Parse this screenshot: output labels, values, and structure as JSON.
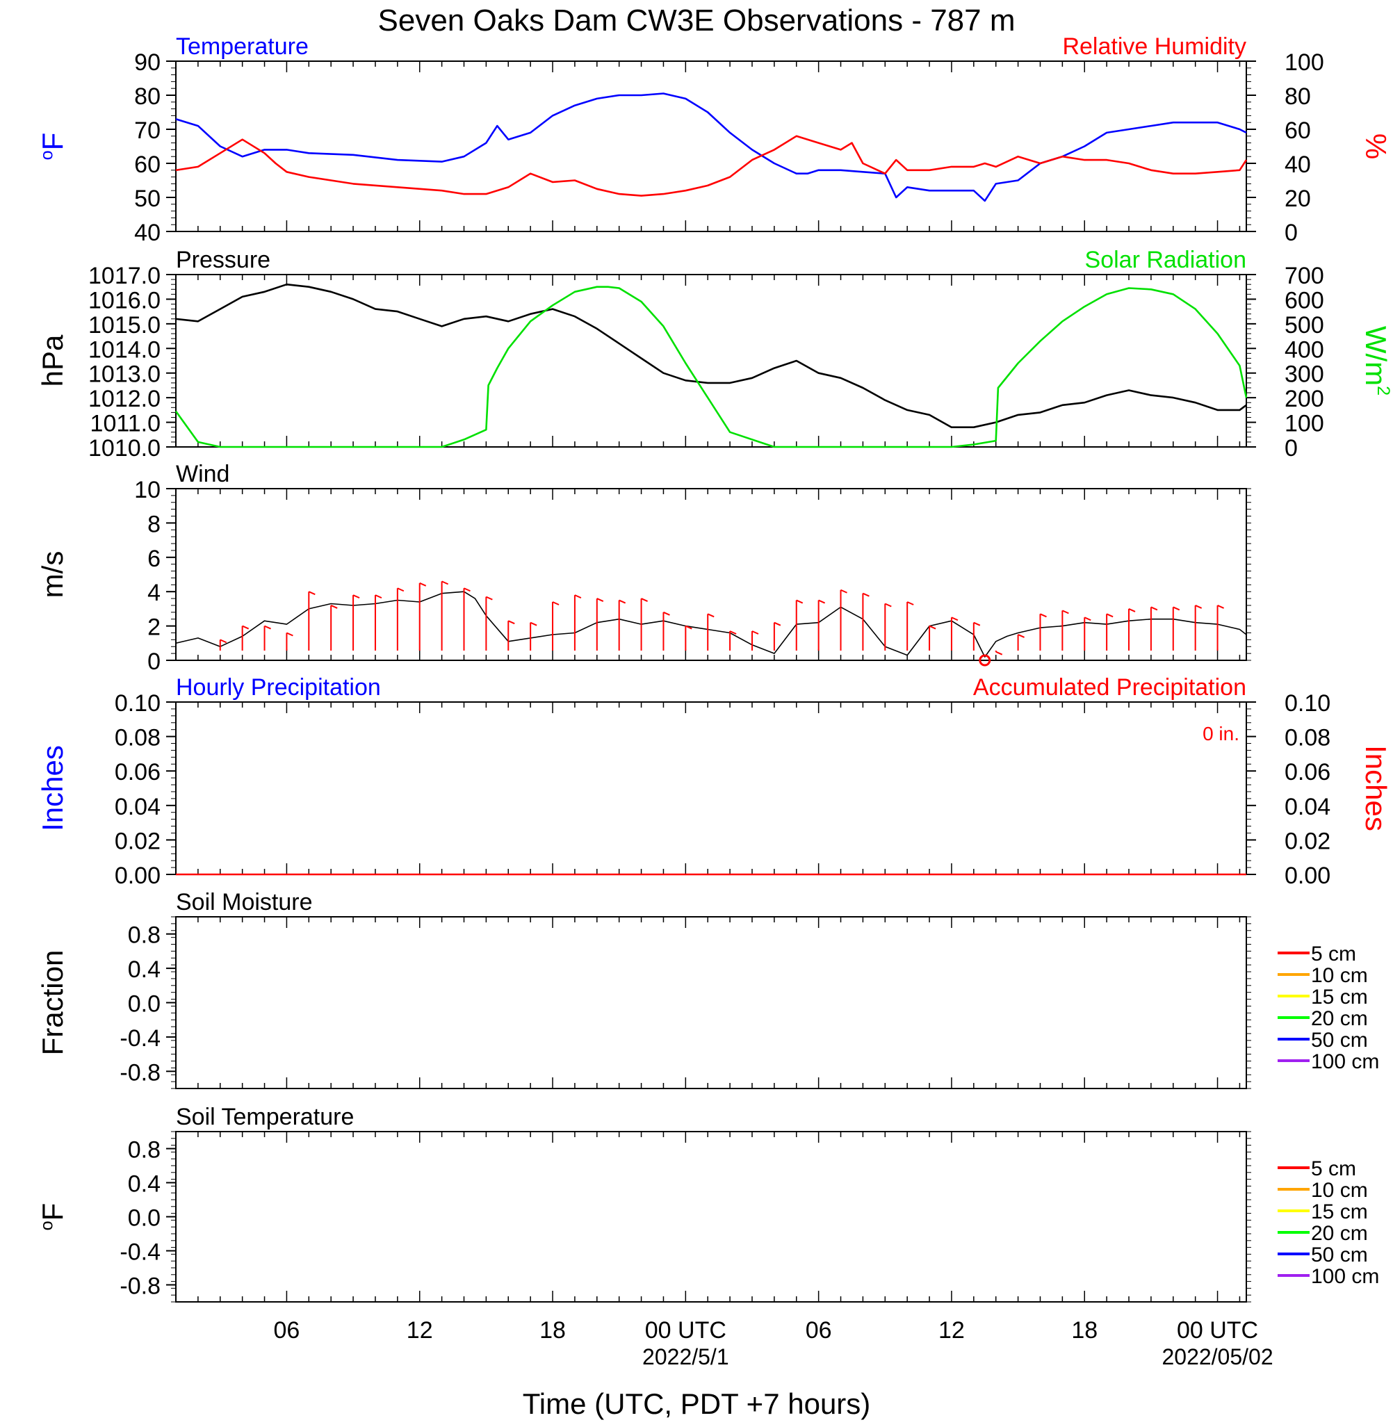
{
  "title": "Seven Oaks Dam CW3E Observations - 787 m",
  "x_axis": {
    "label": "Time (UTC, PDT +7 hours)",
    "ticks": [
      {
        "t": 6,
        "label": "06",
        "sub": ""
      },
      {
        "t": 12,
        "label": "12",
        "sub": ""
      },
      {
        "t": 18,
        "label": "18",
        "sub": ""
      },
      {
        "t": 24,
        "label": "00 UTC",
        "sub": "2022/5/1"
      },
      {
        "t": 30,
        "label": "06",
        "sub": ""
      },
      {
        "t": 36,
        "label": "12",
        "sub": ""
      },
      {
        "t": 42,
        "label": "18",
        "sub": ""
      },
      {
        "t": 48,
        "label": "00 UTC",
        "sub": "2022/05/02"
      }
    ],
    "range_hours": [
      1,
      49.3
    ]
  },
  "colors": {
    "blue": "#0000ff",
    "red": "#ff0000",
    "green": "#00e000",
    "black": "#000000"
  },
  "chart_data": [
    {
      "type": "line",
      "panel": "temperature_rh",
      "left_title": "Temperature",
      "right_title": "Relative Humidity",
      "left_ylabel": "oF",
      "right_ylabel": "%",
      "left_ylim": [
        40,
        90
      ],
      "left_ticks": [
        "90",
        "80",
        "70",
        "60",
        "50",
        "40"
      ],
      "right_ylim": [
        0,
        100
      ],
      "right_ticks": [
        "100",
        "80",
        "60",
        "40",
        "20",
        "0"
      ],
      "series": [
        {
          "name": "Temperature",
          "axis": "left",
          "color": "#0000ff",
          "x": [
            1,
            2,
            3,
            4,
            5,
            6,
            7,
            9,
            11,
            13,
            14,
            15,
            15.5,
            16,
            17,
            18,
            19,
            20,
            21,
            22,
            23,
            24,
            25,
            26,
            27,
            28,
            29,
            29.5,
            30,
            31,
            32,
            33,
            33.5,
            34,
            35,
            36,
            37,
            37.5,
            38,
            39,
            40,
            41,
            42,
            43,
            44,
            45,
            46,
            47,
            48,
            49,
            49.3
          ],
          "y": [
            73,
            71,
            65,
            62,
            64,
            64,
            63,
            62.5,
            61,
            60.5,
            62,
            66,
            71,
            67,
            69,
            74,
            77,
            79,
            80,
            80,
            80.5,
            79,
            75,
            69,
            64,
            60,
            57,
            57,
            58,
            58,
            57.5,
            57,
            50,
            53,
            52,
            52,
            52,
            49,
            54,
            55,
            60,
            62,
            65,
            69,
            70,
            71,
            72,
            72,
            72,
            70,
            69
          ]
        },
        {
          "name": "Relative Humidity",
          "axis": "right",
          "color": "#ff0000",
          "x": [
            1,
            2,
            3,
            4,
            5,
            5.5,
            6,
            7,
            9,
            11,
            13,
            14,
            15,
            16,
            17,
            18,
            19,
            20,
            21,
            22,
            23,
            24,
            25,
            26,
            27,
            28,
            29,
            30,
            31,
            31.5,
            32,
            33,
            33.5,
            34,
            35,
            36,
            37,
            37.5,
            38,
            39,
            40,
            41,
            42,
            43,
            44,
            45,
            46,
            47,
            48,
            49,
            49.3
          ],
          "y": [
            36,
            38,
            46,
            54,
            46,
            40,
            35,
            32,
            28,
            26,
            24,
            22,
            22,
            26,
            34,
            29,
            30,
            25,
            22,
            21,
            22,
            24,
            27,
            32,
            42,
            48,
            56,
            52,
            48,
            52,
            40,
            34,
            42,
            36,
            36,
            38,
            38,
            40,
            38,
            44,
            40,
            44,
            42,
            42,
            40,
            36,
            34,
            34,
            35,
            36,
            42
          ]
        }
      ]
    },
    {
      "type": "line",
      "panel": "pressure_solar",
      "left_title": "Pressure",
      "right_title": "Solar Radiation",
      "left_ylabel": "hPa",
      "right_ylabel": "W/m2",
      "left_ylim": [
        1010,
        1017
      ],
      "left_ticks": [
        "1017.0",
        "1016.0",
        "1015.0",
        "1014.0",
        "1013.0",
        "1012.0",
        "1011.0",
        "1010.0"
      ],
      "right_ylim": [
        0,
        700
      ],
      "right_ticks": [
        "700",
        "600",
        "500",
        "400",
        "300",
        "200",
        "100",
        "0"
      ],
      "series": [
        {
          "name": "Pressure",
          "axis": "left",
          "color": "#000000",
          "x": [
            1,
            2,
            3,
            4,
            5,
            6,
            7,
            8,
            9,
            10,
            11,
            12,
            13,
            14,
            15,
            16,
            17,
            18,
            19,
            20,
            21,
            22,
            23,
            24,
            25,
            26,
            27,
            28,
            29,
            30,
            31,
            32,
            33,
            34,
            35,
            36,
            37,
            38,
            39,
            40,
            41,
            42,
            43,
            44,
            45,
            46,
            47,
            48,
            49,
            49.3
          ],
          "y": [
            1015.2,
            1015.1,
            1015.6,
            1016.1,
            1016.3,
            1016.6,
            1016.5,
            1016.3,
            1016.0,
            1015.6,
            1015.5,
            1015.2,
            1014.9,
            1015.2,
            1015.3,
            1015.1,
            1015.4,
            1015.6,
            1015.3,
            1014.8,
            1014.2,
            1013.6,
            1013.0,
            1012.7,
            1012.6,
            1012.6,
            1012.8,
            1013.2,
            1013.5,
            1013.0,
            1012.8,
            1012.4,
            1011.9,
            1011.5,
            1011.3,
            1010.8,
            1010.8,
            1011.0,
            1011.3,
            1011.4,
            1011.7,
            1011.8,
            1012.1,
            1012.3,
            1012.1,
            1012.0,
            1011.8,
            1011.5,
            1011.5,
            1011.7
          ]
        },
        {
          "name": "Solar Radiation",
          "axis": "right",
          "color": "#00e000",
          "x": [
            1,
            2,
            3,
            5,
            10,
            13,
            14,
            15,
            15.1,
            15.5,
            16,
            17,
            18,
            19,
            20,
            20.5,
            21,
            22,
            23,
            24,
            25,
            26,
            28,
            34,
            36,
            37,
            38,
            38.1,
            39,
            40,
            41,
            42,
            43,
            44,
            45,
            46,
            47,
            48,
            49,
            49.3
          ],
          "y": [
            145,
            20,
            0,
            0,
            0,
            0,
            30,
            70,
            250,
            320,
            400,
            510,
            575,
            630,
            650,
            650,
            645,
            590,
            490,
            340,
            200,
            60,
            0,
            0,
            0,
            10,
            25,
            240,
            340,
            430,
            510,
            570,
            620,
            645,
            640,
            620,
            560,
            460,
            330,
            200
          ]
        }
      ]
    },
    {
      "type": "line",
      "panel": "wind",
      "left_title": "Wind",
      "left_ylabel": "m/s",
      "left_ylim": [
        0,
        10
      ],
      "left_ticks": [
        "10",
        "8",
        "6",
        "4",
        "2",
        "0"
      ],
      "series": [
        {
          "name": "Wind",
          "axis": "left",
          "color": "#000000",
          "x": [
            1,
            2,
            3,
            4,
            5,
            6,
            7,
            8,
            9,
            10,
            11,
            12,
            13,
            14,
            14.5,
            15,
            16,
            17,
            18,
            19,
            20,
            21,
            22,
            23,
            24,
            25,
            26,
            27,
            28,
            29,
            30,
            31,
            32,
            33,
            34,
            35,
            36,
            37,
            37.5,
            38,
            38.5,
            39,
            40,
            41,
            42,
            43,
            44,
            45,
            46,
            47,
            48,
            49,
            49.3
          ],
          "y": [
            1.0,
            1.3,
            0.8,
            1.4,
            2.3,
            2.1,
            3.0,
            3.3,
            3.2,
            3.3,
            3.5,
            3.4,
            3.9,
            4.0,
            3.6,
            2.6,
            1.1,
            1.3,
            1.5,
            1.6,
            2.2,
            2.4,
            2.1,
            2.3,
            2.0,
            1.8,
            1.6,
            0.9,
            0.4,
            2.1,
            2.2,
            3.1,
            2.4,
            0.8,
            0.3,
            2.0,
            2.3,
            1.5,
            0.2,
            1.1,
            1.4,
            1.6,
            1.9,
            2.0,
            2.2,
            2.1,
            2.3,
            2.4,
            2.4,
            2.2,
            2.1,
            1.8,
            1.5
          ]
        },
        {
          "name": "Wind barbs",
          "axis": "left",
          "color": "#ff0000",
          "x": [
            3,
            4,
            5,
            6,
            7,
            8,
            9,
            10,
            11,
            12,
            13,
            14,
            15,
            16,
            17,
            18,
            19,
            20,
            21,
            22,
            23,
            24,
            25,
            26,
            27,
            28,
            29,
            30,
            31,
            32,
            33,
            34,
            35,
            36,
            37,
            38,
            39,
            40,
            41,
            42,
            43,
            44,
            45,
            46,
            47,
            48
          ],
          "y": [
            1.2,
            2,
            2,
            1.6,
            4,
            3.2,
            3.8,
            3.8,
            4.2,
            4.5,
            4.6,
            4.2,
            3.7,
            2.3,
            2.2,
            3.4,
            3.8,
            3.6,
            3.5,
            3.6,
            2.8,
            2.0,
            2.7,
            1.7,
            1.7,
            2.2,
            3.5,
            3.5,
            4.1,
            3.9,
            3.3,
            3.4,
            2.0,
            2.5,
            2.2,
            0.5,
            1.5,
            2.7,
            2.9,
            2.5,
            2.7,
            3.0,
            3.1,
            3.1,
            3.2,
            3.2
          ]
        }
      ]
    },
    {
      "type": "line",
      "panel": "precipitation",
      "left_title": "Hourly Precipitation",
      "right_title": "Accumulated Precipitation",
      "right_note": "0 in.",
      "left_ylabel": "Inches",
      "right_ylabel": "Inches",
      "left_ylim": [
        0,
        0.1
      ],
      "left_ticks": [
        "0.10",
        "0.08",
        "0.06",
        "0.04",
        "0.02",
        "0.00"
      ],
      "right_ylim": [
        0,
        0.1
      ],
      "right_ticks": [
        "0.10",
        "0.08",
        "0.06",
        "0.04",
        "0.02",
        "0.00"
      ],
      "series": [
        {
          "name": "Accumulated Precipitation",
          "axis": "right",
          "color": "#ff0000",
          "x": [
            1,
            49.3
          ],
          "y": [
            0,
            0
          ]
        }
      ]
    },
    {
      "type": "line",
      "panel": "soil_moisture",
      "left_title": "Soil Moisture",
      "left_ylabel": "Fraction",
      "left_ylim": [
        -1,
        1
      ],
      "left_ticks": [
        "0.8",
        "0.4",
        "0.0",
        "-0.4",
        "-0.8"
      ],
      "legend": [
        {
          "label": "5 cm",
          "color": "#ff0000"
        },
        {
          "label": "10 cm",
          "color": "#ffa500"
        },
        {
          "label": "15 cm",
          "color": "#ffff00"
        },
        {
          "label": "20 cm",
          "color": "#00ff00"
        },
        {
          "label": "50 cm",
          "color": "#0000ff"
        },
        {
          "label": "100 cm",
          "color": "#a020f0"
        }
      ],
      "series": []
    },
    {
      "type": "line",
      "panel": "soil_temperature",
      "left_title": "Soil Temperature",
      "left_ylabel": "oF",
      "left_ylim": [
        -1,
        1
      ],
      "left_ticks": [
        "0.8",
        "0.4",
        "0.0",
        "-0.4",
        "-0.8"
      ],
      "legend": [
        {
          "label": "5 cm",
          "color": "#ff0000"
        },
        {
          "label": "10 cm",
          "color": "#ffa500"
        },
        {
          "label": "15 cm",
          "color": "#ffff00"
        },
        {
          "label": "20 cm",
          "color": "#00ff00"
        },
        {
          "label": "50 cm",
          "color": "#0000ff"
        },
        {
          "label": "100 cm",
          "color": "#a020f0"
        }
      ],
      "series": []
    }
  ]
}
